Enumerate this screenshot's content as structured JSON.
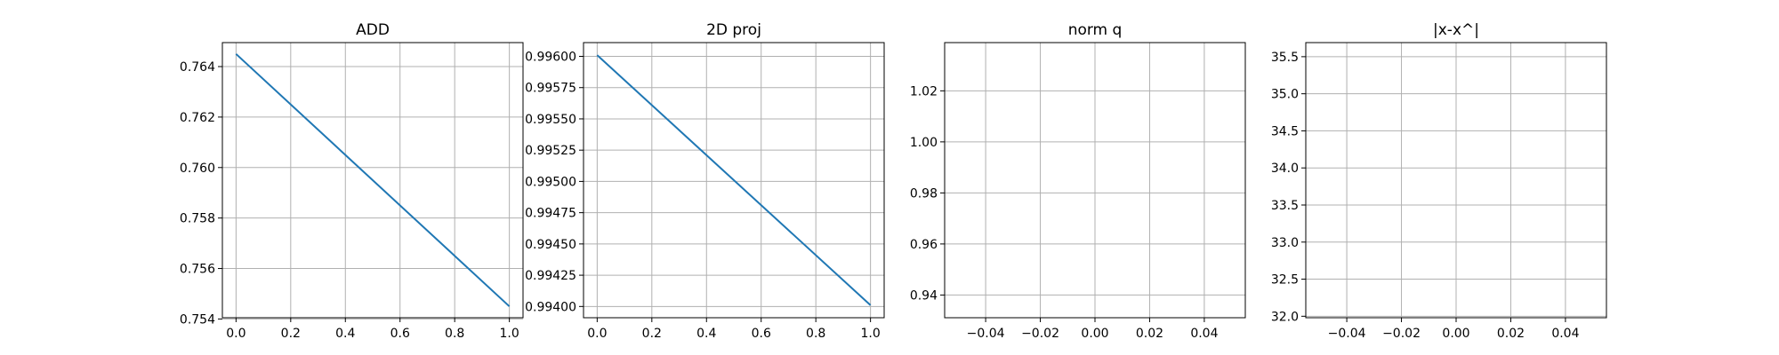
{
  "chart_data": [
    {
      "type": "line",
      "title": "ADD",
      "x": [
        0.0,
        1.0
      ],
      "series": [
        {
          "values": [
            0.7645,
            0.7545
          ],
          "color": "#1f77b4"
        }
      ],
      "xlim": [
        -0.05,
        1.05
      ],
      "ylim": [
        0.75405,
        0.76495
      ],
      "xticks": [
        0.0,
        0.2,
        0.4,
        0.6,
        0.8,
        1.0
      ],
      "xtick_labels": [
        "0.0",
        "0.2",
        "0.4",
        "0.6",
        "0.8",
        "1.0"
      ],
      "yticks": [
        0.754,
        0.756,
        0.758,
        0.76,
        0.762,
        0.764
      ],
      "ytick_labels": [
        "0.754",
        "0.756",
        "0.758",
        "0.760",
        "0.762",
        "0.764"
      ],
      "grid": true
    },
    {
      "type": "line",
      "title": "2D proj",
      "x": [
        0.0,
        1.0
      ],
      "series": [
        {
          "values": [
            0.99601,
            0.99401
          ],
          "color": "#1f77b4"
        }
      ],
      "xlim": [
        -0.05,
        1.05
      ],
      "ylim": [
        0.99391,
        0.99611
      ],
      "xticks": [
        0.0,
        0.2,
        0.4,
        0.6,
        0.8,
        1.0
      ],
      "xtick_labels": [
        "0.0",
        "0.2",
        "0.4",
        "0.6",
        "0.8",
        "1.0"
      ],
      "yticks": [
        0.994,
        0.99425,
        0.9945,
        0.99475,
        0.995,
        0.99525,
        0.9955,
        0.99575,
        0.996
      ],
      "ytick_labels": [
        "0.99400",
        "0.99425",
        "0.99450",
        "0.99475",
        "0.99500",
        "0.99525",
        "0.99550",
        "0.99575",
        "0.99600"
      ],
      "grid": true
    },
    {
      "type": "line",
      "title": "norm q",
      "x": [],
      "series": [
        {
          "values": [],
          "color": "#1f77b4"
        }
      ],
      "xlim": [
        -0.055,
        0.055
      ],
      "ylim": [
        0.9311,
        1.0389
      ],
      "xticks": [
        -0.04,
        -0.02,
        0.0,
        0.02,
        0.04
      ],
      "xtick_labels": [
        "−0.04",
        "−0.02",
        "0.00",
        "0.02",
        "0.04"
      ],
      "yticks": [
        0.94,
        0.96,
        0.98,
        1.0,
        1.02
      ],
      "ytick_labels": [
        "0.94",
        "0.96",
        "0.98",
        "1.00",
        "1.02"
      ],
      "grid": true
    },
    {
      "type": "line",
      "title": "|x-x^|",
      "x": [],
      "series": [
        {
          "values": [],
          "color": "#1f77b4"
        }
      ],
      "xlim": [
        -0.055,
        0.055
      ],
      "ylim": [
        31.98,
        35.69
      ],
      "xticks": [
        -0.04,
        -0.02,
        0.0,
        0.02,
        0.04
      ],
      "xtick_labels": [
        "−0.04",
        "−0.02",
        "0.00",
        "0.02",
        "0.04"
      ],
      "yticks": [
        32.0,
        32.5,
        33.0,
        33.5,
        34.0,
        34.5,
        35.0,
        35.5
      ],
      "ytick_labels": [
        "32.0",
        "32.5",
        "33.0",
        "33.5",
        "34.0",
        "34.5",
        "35.0",
        "35.5"
      ],
      "grid": true
    }
  ]
}
